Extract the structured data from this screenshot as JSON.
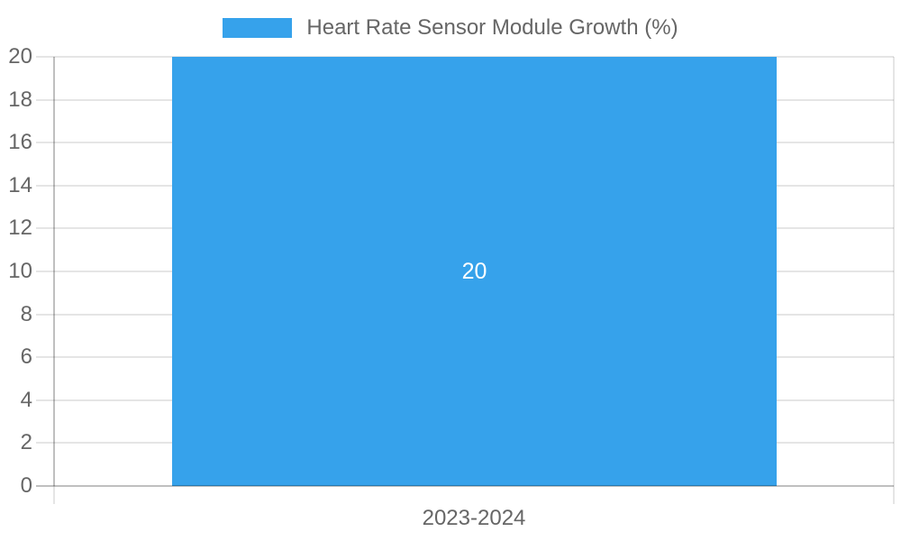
{
  "chart_data": {
    "type": "bar",
    "title": "Heart Rate Sensor Module Growth (%)",
    "categories": [
      "2023-2024"
    ],
    "values": [
      20
    ],
    "xlabel": "",
    "ylabel": "",
    "ylim": [
      0,
      20
    ],
    "yticks": [
      0,
      2,
      4,
      6,
      8,
      10,
      12,
      14,
      16,
      18,
      20
    ],
    "grid": true,
    "legend": {
      "position": "top",
      "label": "Heart Rate Sensor Module Growth (%)"
    },
    "bar_value_label": "20",
    "colors": {
      "bar": "#36a2eb",
      "text": "#666666",
      "gridline": "rgba(0,0,0,0.10)",
      "zero_line": "rgba(0,0,0,0.25)",
      "bar_label": "#ffffff",
      "background": "#ffffff"
    }
  }
}
